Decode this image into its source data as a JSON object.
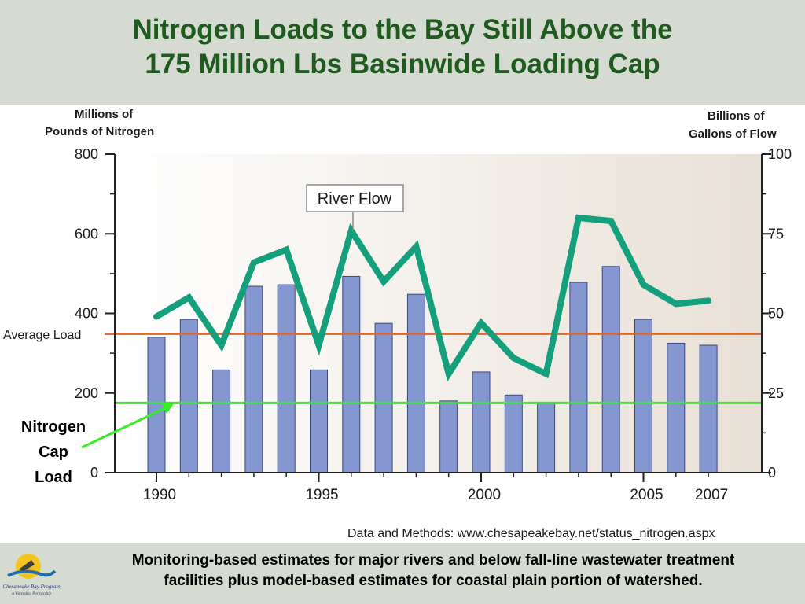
{
  "header": {
    "title_line1": "Nitrogen Loads to the Bay Still Above the",
    "title_line2": "175 Million Lbs Basinwide Loading Cap"
  },
  "footer": {
    "line1": "Monitoring-based estimates for major rivers and below fall-line wastewater treatment",
    "line2": "facilities plus model-based estimates for coastal plain portion of watershed.",
    "logo_text": "Chesapeake Bay Program",
    "logo_tagline": "A Watershed Partnership"
  },
  "chart_data": {
    "type": "bar",
    "ylabel_left_line1": "Millions of",
    "ylabel_left_line2": "Pounds of Nitrogen",
    "ylabel_right_line1": "Billions of",
    "ylabel_right_line2": "Gallons of Flow",
    "ylim_left": [
      0,
      800
    ],
    "ylim_right": [
      0,
      100
    ],
    "left_ticks": [
      0,
      200,
      400,
      600,
      800
    ],
    "right_ticks": [
      0,
      25,
      50,
      75,
      100
    ],
    "x_tick_labels": [
      "1990",
      "1995",
      "2000",
      "2005",
      "2007"
    ],
    "x_tick_years": [
      1990,
      1995,
      2000,
      2005,
      2007
    ],
    "years": [
      1990,
      1991,
      1992,
      1993,
      1994,
      1995,
      1996,
      1997,
      1998,
      1999,
      2000,
      2001,
      2002,
      2003,
      2004,
      2005,
      2006,
      2007
    ],
    "nitrogen_load": [
      340,
      385,
      258,
      468,
      472,
      258,
      493,
      375,
      448,
      180,
      253,
      195,
      175,
      478,
      518,
      385,
      325,
      320
    ],
    "river_flow_name": "River Flow",
    "river_flow": [
      49,
      55,
      40,
      66,
      70,
      40,
      76,
      60,
      71,
      31,
      47,
      36,
      31,
      80,
      79,
      59,
      53,
      54
    ],
    "average_load_label": "Average Load",
    "average_load": 348,
    "cap_label_line1": "Nitrogen",
    "cap_label_line2": "Cap",
    "cap_label_line3": "Load",
    "cap_load": 175,
    "source_note": "Data and Methods: www.chesapeakebay.net/status_nitrogen.aspx",
    "colors": {
      "bar": "#8497d0",
      "bar_stroke": "#3d4a7a",
      "flow": "#15a07d",
      "average": "#e0662b",
      "cap": "#33ee22",
      "plot_bg_start": "#ffffff",
      "plot_bg_end": "#e8e0d6"
    }
  }
}
